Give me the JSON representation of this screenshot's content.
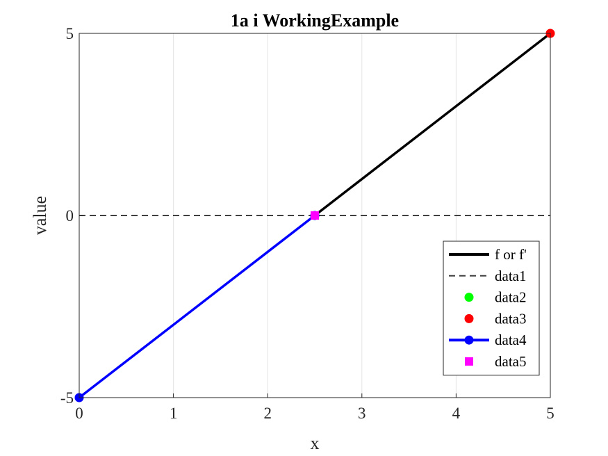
{
  "chart_data": {
    "type": "line",
    "title": "1a i WorkingExample",
    "xlabel": "x",
    "ylabel": "value",
    "xlim": [
      0,
      5
    ],
    "ylim": [
      -5,
      5
    ],
    "xticks": [
      0,
      1,
      2,
      3,
      4,
      5
    ],
    "yticks": [
      -5,
      0,
      5
    ],
    "xtick_labels": [
      "0",
      "1",
      "2",
      "3",
      "4",
      "5"
    ],
    "ytick_labels": [
      "-5",
      "0",
      "5"
    ],
    "grid": {
      "x": true,
      "y": false
    },
    "legend": {
      "position": "bottom-right"
    },
    "series": [
      {
        "name": "f or f'",
        "style": "solid",
        "marker": "none",
        "color": "#000000",
        "x": [
          2.5,
          5
        ],
        "y": [
          0,
          5
        ]
      },
      {
        "name": "data1",
        "style": "dashed",
        "marker": "none",
        "color": "#404040",
        "x": [
          0,
          5
        ],
        "y": [
          0,
          0
        ]
      },
      {
        "name": "data2",
        "style": "none",
        "marker": "circle",
        "color": "#00ff00",
        "x": [],
        "y": []
      },
      {
        "name": "data3",
        "style": "none",
        "marker": "circle",
        "color": "#ff0000",
        "x": [
          5
        ],
        "y": [
          5
        ]
      },
      {
        "name": "data4",
        "style": "solid",
        "marker": "circle",
        "color": "#0000ff",
        "x": [
          0,
          2.5
        ],
        "y": [
          -5,
          0
        ]
      },
      {
        "name": "data5",
        "style": "none",
        "marker": "square",
        "color": "#ff00ff",
        "x": [
          2.5
        ],
        "y": [
          0
        ]
      }
    ]
  }
}
